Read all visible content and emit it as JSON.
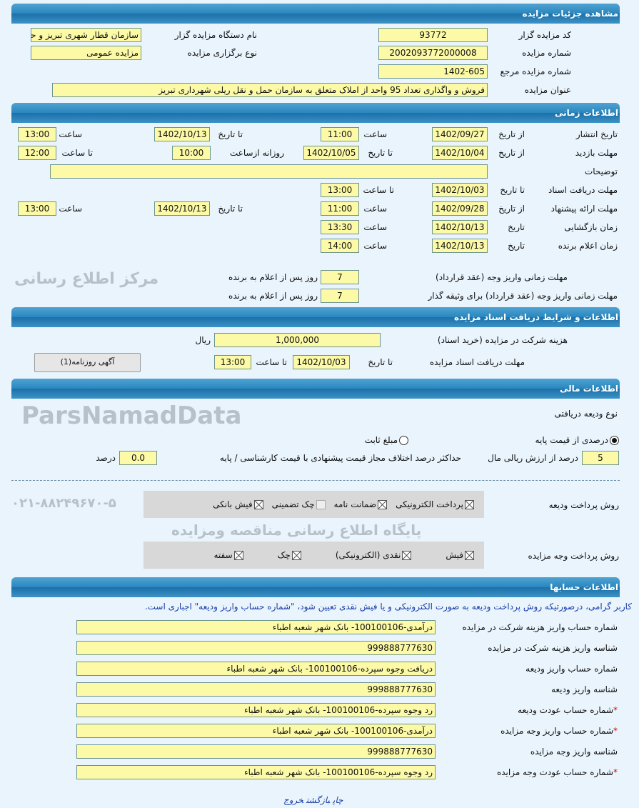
{
  "sections": {
    "details": "مشاهده جزئیات مزایده",
    "time": "اطلاعات زمانی",
    "docs": "اطلاعات و شرایط دریافت اسناد مزایده",
    "finance": "اطلاعات مالی",
    "accounts": "اطلاعات حسابها"
  },
  "details": {
    "code_label": "کد مزایده گزار",
    "code": "93772",
    "org_label": "نام دستگاه مزایده گزار",
    "org": "سازمان قطار شهری تبریز و حو",
    "number_label": "شماره مزایده",
    "number": "2002093772000008",
    "type_label": "نوع برگزاری مزایده",
    "type": "مزایده عمومی",
    "ref_label": "شماره مزایده مرجع",
    "ref": "1402-605",
    "title_label": "عنوان مزایده",
    "title": "فروش و واگذاری تعداد 95 واحد از املاک متعلق به سازمان حمل و نقل ریلی شهرداری تبریز"
  },
  "time": {
    "publish": {
      "label": "تاریخ انتشار",
      "from_label": "از تاریخ",
      "from": "1402/09/27",
      "time1_label": "ساعت",
      "time1": "11:00",
      "to_label": "تا تاریخ",
      "to": "1402/10/13",
      "time2_label": "ساعت",
      "time2": "13:00"
    },
    "visit": {
      "label": "مهلت بازدید",
      "from_label": "از تاریخ",
      "from": "1402/10/04",
      "to_label": "تا تاریخ",
      "to": "1402/10/05",
      "daily_label": "روزانه ازساعت",
      "daily": "10:00",
      "until_label": "تا ساعت",
      "until": "12:00"
    },
    "desc_label": "توضیحات",
    "desc": "",
    "docs": {
      "label": "مهلت دریافت اسناد",
      "to_label": "تا تاریخ",
      "to": "1402/10/03",
      "time_label": "تا ساعت",
      "time": "13:00"
    },
    "offer": {
      "label": "مهلت ارائه پیشنهاد",
      "from_label": "از تاریخ",
      "from": "1402/09/28",
      "time1_label": "ساعت",
      "time1": "11:00",
      "to_label": "تا تاریخ",
      "to": "1402/10/13",
      "time2_label": "ساعت",
      "time2": "13:00"
    },
    "opening": {
      "label": "زمان بازگشایی",
      "date_label": "تاریخ",
      "date": "1402/10/13",
      "time_label": "ساعت",
      "time": "13:30"
    },
    "winner": {
      "label": "زمان اعلام برنده",
      "date_label": "تاریخ",
      "date": "1402/10/13",
      "time_label": "ساعت",
      "time": "14:00"
    },
    "pay_label": "مهلت زمانی واریز وجه (عقد قرارداد)",
    "pay": "7",
    "pay_unit": "روز پس از اعلام به برنده",
    "pay2_label": "مهلت زمانی واریز وجه (عقد قرارداد) برای وثیقه گذار",
    "pay2": "7",
    "pay2_unit": "روز پس از اعلام به برنده"
  },
  "docs": {
    "fee_label": "هزینه شرکت در مزایده (خرید اسناد)",
    "fee": "1,000,000",
    "fee_unit": "ریال",
    "deadline_label": "مهلت دریافت اسناد مزایده",
    "to_label": "تا تاریخ",
    "to": "1402/10/03",
    "time_label": "تا ساعت",
    "time": "13:00",
    "ad_button": "آگهی روزنامه(1)"
  },
  "finance": {
    "deposit_type_label": "نوع ودیعه دریافتی",
    "radio_percent": "درصدی از قیمت پایه",
    "radio_fixed": "مبلغ ثابت",
    "selected": "percent",
    "percent": "5",
    "percent_label": "درصد از ارزش ریالی مال",
    "max_diff_label": "حداکثر درصد اختلاف مجاز قیمت پیشنهادی با قیمت کارشناسی / پایه",
    "max_diff": "0.0",
    "max_diff_unit": "درصد",
    "deposit_method_label": "روش پرداخت ودیعه",
    "deposit_methods": [
      {
        "label": "پرداخت الکترونیکی",
        "checked": true
      },
      {
        "label": "ضمانت نامه",
        "checked": true
      },
      {
        "label": "چک تضمینی",
        "checked": false
      },
      {
        "label": "فیش بانکی",
        "checked": true
      }
    ],
    "payment_method_label": "روش پرداخت وجه مزایده",
    "payment_methods": [
      {
        "label": "فیش",
        "checked": true
      },
      {
        "label": "نقدی (الکترونیکی)",
        "checked": true
      },
      {
        "label": "چک",
        "checked": true
      },
      {
        "label": "سفته",
        "checked": true
      }
    ]
  },
  "accounts": {
    "notice": "کاربر گرامی، درصورتیکه روش پرداخت ودیعه به صورت الکترونیکی و یا فیش نقدی تعیین شود، \"شماره حساب واریز ودیعه\" اجباری است.",
    "rows": [
      {
        "label": "شماره حساب واریز هزینه شرکت در مزایده",
        "value": "درآمدی-100100106- بانک شهر شعبه اطباء",
        "required": false
      },
      {
        "label": "شناسه واریز هزینه شرکت در مزایده",
        "value": "999888777630",
        "required": false
      },
      {
        "label": "شماره حساب واریز ودیعه",
        "value": "دریافت وجوه سپرده-100100106- بانک شهر شعبه اطباء",
        "required": false
      },
      {
        "label": "شناسه واریز ودیعه",
        "value": "999888777630",
        "required": false
      },
      {
        "label": "شماره حساب عودت ودیعه",
        "value": "رد وجوه سپرده-100100106- بانک شهر شعبه اطباء",
        "required": true
      },
      {
        "label": "شماره حساب واریز وجه مزایده",
        "value": "درآمدی-100100106- بانک شهر شعبه اطباء",
        "required": true
      },
      {
        "label": "شناسه واریز وجه مزایده",
        "value": "999888777630",
        "required": false
      },
      {
        "label": "شماره حساب عودت وجه مزایده",
        "value": "رد وجوه سپرده-100100106- بانک شهر شعبه اطباء",
        "required": true
      }
    ]
  },
  "footer": {
    "print": "چاپ",
    "back": "بازگشت",
    "exit": "خروج"
  },
  "watermark": {
    "brand": "ParsNamadData",
    "line1": "مرکز اطلاع رسانی",
    "line2": "پایگاه اطلاع رسانی مناقصه ومزایده",
    "phone": "۰۲۱-۸۸۲۴۹۶۷۰-۵"
  }
}
